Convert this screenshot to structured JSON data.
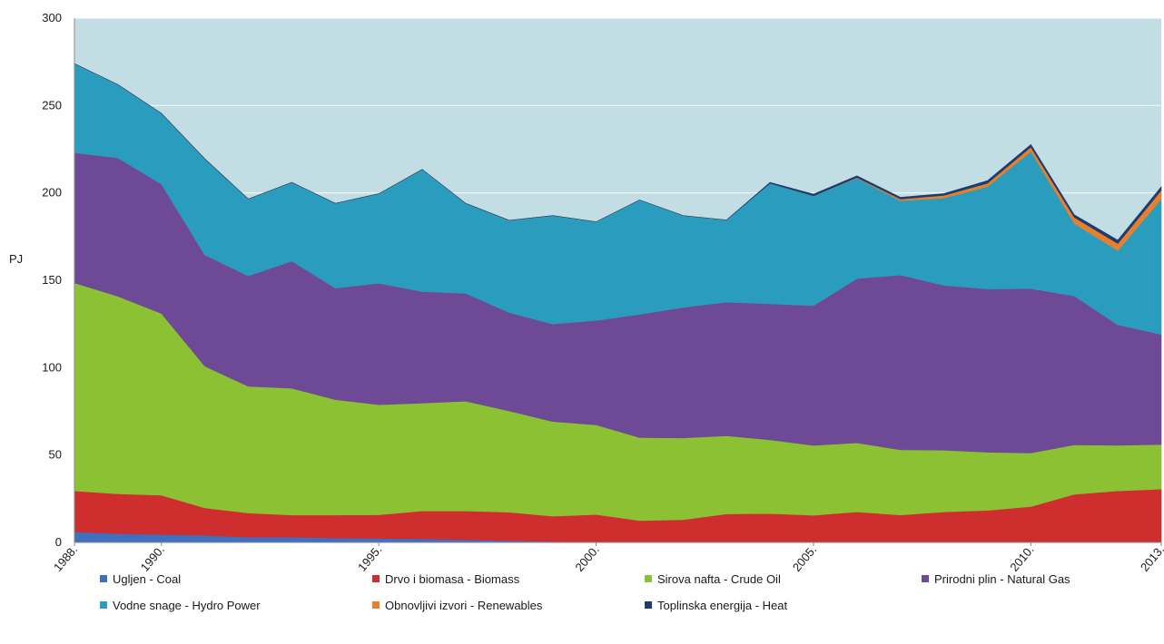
{
  "chart_data": {
    "type": "area",
    "stacked": true,
    "ylabel": "PJ",
    "xlabel": "",
    "ylim": [
      0,
      300
    ],
    "yticks": [
      0,
      50,
      100,
      150,
      200,
      250,
      300
    ],
    "xlim": [
      1988,
      2013
    ],
    "xtick_labels": [
      {
        "x": 1988,
        "label": "1988."
      },
      {
        "x": 1990,
        "label": "1990."
      },
      {
        "x": 1995,
        "label": "1995."
      },
      {
        "x": 2000,
        "label": "2000."
      },
      {
        "x": 2005,
        "label": "2005."
      },
      {
        "x": 2010,
        "label": "2010."
      },
      {
        "x": 2013,
        "label": "2013."
      }
    ],
    "x": [
      1988,
      1989,
      1990,
      1991,
      1992,
      1993,
      1994,
      1995,
      1996,
      1997,
      1998,
      1999,
      2000,
      2001,
      2002,
      2003,
      2004,
      2005,
      2006,
      2007,
      2008,
      2009,
      2010,
      2011,
      2012,
      2013
    ],
    "plot_background": "#c3dde5",
    "series": [
      {
        "name": "Ugljen - Coal",
        "color": "#3f6fc1",
        "values": [
          6,
          5,
          4.5,
          4,
          3,
          3,
          2.5,
          2.3,
          2,
          1.5,
          1,
          0.5,
          0,
          0,
          0,
          0,
          0,
          0,
          0,
          0,
          0,
          0,
          0,
          0,
          0,
          0
        ]
      },
      {
        "name": "Drvo i biomasa - Biomass",
        "color": "#cf2e2e",
        "values": [
          23.5,
          22.8,
          22.5,
          15.8,
          13.8,
          12.7,
          13.2,
          13.5,
          16,
          16.5,
          16.3,
          14.5,
          16,
          12.5,
          13,
          16.3,
          16.5,
          15.5,
          17.5,
          15.7,
          17.5,
          18.3,
          20.5,
          27.5,
          29.5,
          30.5
        ]
      },
      {
        "name": "Sirova nafta - Crude Oil",
        "color": "#8cc134",
        "values": [
          119,
          113,
          104,
          81,
          72.5,
          72.5,
          66,
          63,
          61.7,
          62.8,
          57.9,
          54.2,
          51.2,
          47.5,
          46.8,
          44.7,
          42.2,
          40,
          39.5,
          37.3,
          35.3,
          33.3,
          30.7,
          28.3,
          26.1,
          25.5
        ]
      },
      {
        "name": "Prirodni plin - Natural Gas",
        "color": "#6e4a96",
        "values": [
          74.5,
          79.2,
          74,
          63.7,
          63.2,
          72.8,
          63.8,
          69.5,
          63.8,
          61.7,
          56.3,
          55.8,
          59.8,
          70.5,
          74.7,
          76.5,
          77.8,
          80,
          94,
          100,
          94.3,
          93.4,
          94,
          85.2,
          68.9,
          63
        ]
      },
      {
        "name": "Vodne snage - Hydro Power",
        "color": "#2a9dbf",
        "values": [
          51,
          42,
          40.5,
          55,
          44,
          45,
          48.5,
          51.2,
          70,
          51.5,
          52.8,
          62,
          56.5,
          65.5,
          52.5,
          47,
          69,
          62.8,
          57.5,
          42.5,
          50,
          58.5,
          78.5,
          41.5,
          42.5,
          77.5
        ]
      },
      {
        "name": "Obnovljivi izvori - Renewables",
        "color": "#e87f2d",
        "values": [
          0,
          0,
          0,
          0,
          0,
          0,
          0,
          0,
          0,
          0,
          0,
          0,
          0,
          0,
          0,
          0,
          0,
          0,
          0.3,
          1,
          1.5,
          2,
          2.5,
          3.5,
          4,
          5
        ]
      },
      {
        "name": "Toplinska energija - Heat",
        "color": "#1c3d6e",
        "values": [
          0,
          0,
          0,
          0,
          0,
          0,
          0,
          0,
          0,
          0,
          0,
          0,
          0,
          0,
          0,
          0,
          0.5,
          1,
          1,
          1,
          1,
          1.5,
          1.5,
          1.5,
          2,
          2
        ]
      }
    ],
    "legend_position": "bottom",
    "grid": true
  }
}
